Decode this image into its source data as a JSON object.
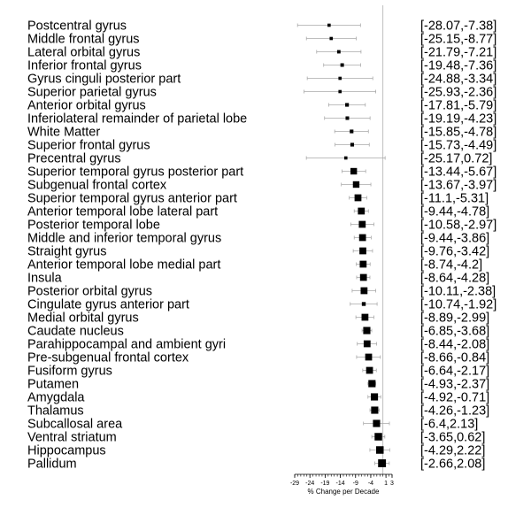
{
  "chart_data": {
    "type": "forest",
    "xlabel": "% Change per Decade",
    "xlim": [
      -29,
      3
    ],
    "x_ticks": [
      -29,
      -24,
      -19,
      -14,
      -9,
      -4,
      1,
      3
    ],
    "reference_line": 0,
    "rows": [
      {
        "label": "Postcentral gyrus",
        "estimate": -17.7,
        "lower": -28.07,
        "upper": -7.38,
        "ci_text": "[-28.07,-7.38]",
        "weight": 0.15
      },
      {
        "label": "Middle frontal gyrus",
        "estimate": -17.0,
        "lower": -25.15,
        "upper": -8.77,
        "ci_text": "[-25.15,-8.77]",
        "weight": 0.15
      },
      {
        "label": "Lateral orbital gyrus",
        "estimate": -14.5,
        "lower": -21.79,
        "upper": -7.21,
        "ci_text": "[-21.79,-7.21]",
        "weight": 0.18
      },
      {
        "label": "Inferior frontal gyrus",
        "estimate": -13.4,
        "lower": -19.48,
        "upper": -7.36,
        "ci_text": "[-19.48,-7.36]",
        "weight": 0.2
      },
      {
        "label": "Gyrus cinguli posterior part",
        "estimate": -14.1,
        "lower": -24.88,
        "upper": -3.34,
        "ci_text": "[-24.88,-3.34]",
        "weight": 0.15
      },
      {
        "label": "Superior parietal gyrus",
        "estimate": -14.1,
        "lower": -25.93,
        "upper": -2.36,
        "ci_text": "[-25.93,-2.36]",
        "weight": 0.15
      },
      {
        "label": "Anterior orbital gyrus",
        "estimate": -11.8,
        "lower": -17.81,
        "upper": -5.79,
        "ci_text": "[-17.81,-5.79]",
        "weight": 0.22
      },
      {
        "label": "Inferiolateral remainder of parietal lobe",
        "estimate": -11.7,
        "lower": -19.19,
        "upper": -4.23,
        "ci_text": "[-19.19,-4.23]",
        "weight": 0.2
      },
      {
        "label": "White Matter",
        "estimate": -10.3,
        "lower": -15.85,
        "upper": -4.78,
        "ci_text": "[-15.85,-4.78]",
        "weight": 0.22
      },
      {
        "label": "Superior frontal gyrus",
        "estimate": -10.1,
        "lower": -15.73,
        "upper": -4.49,
        "ci_text": "[-15.73,-4.49]",
        "weight": 0.22
      },
      {
        "label": "Precentral gyrus",
        "estimate": -12.2,
        "lower": -25.17,
        "upper": 0.72,
        "ci_text": "[-25.17,0.72]",
        "weight": 0.15
      },
      {
        "label": "Superior temporal gyrus posterior part",
        "estimate": -9.6,
        "lower": -13.44,
        "upper": -5.67,
        "ci_text": "[-13.44,-5.67]",
        "weight": 0.65
      },
      {
        "label": "Subgenual frontal cortex",
        "estimate": -8.8,
        "lower": -13.67,
        "upper": -3.97,
        "ci_text": "[-13.67,-3.97]",
        "weight": 0.65
      },
      {
        "label": " Superior temporal gyrus anterior part",
        "estimate": -8.2,
        "lower": -11.1,
        "upper": -5.31,
        "ci_text": "[-11.1,-5.31]",
        "weight": 0.7
      },
      {
        "label": "Anterior temporal lobe lateral part",
        "estimate": -7.1,
        "lower": -9.44,
        "upper": -4.78,
        "ci_text": "[-9.44,-4.78]",
        "weight": 0.7
      },
      {
        "label": "Posterior temporal lobe",
        "estimate": -6.8,
        "lower": -10.58,
        "upper": -2.97,
        "ci_text": "[-10.58,-2.97]",
        "weight": 0.7
      },
      {
        "label": "Middle and inferior temporal gyrus",
        "estimate": -6.7,
        "lower": -9.44,
        "upper": -3.86,
        "ci_text": "[-9.44,-3.86]",
        "weight": 0.7
      },
      {
        "label": "Straight gyrus",
        "estimate": -6.6,
        "lower": -9.76,
        "upper": -3.42,
        "ci_text": "[-9.76,-3.42]",
        "weight": 0.7
      },
      {
        "label": "Anterior temporal lobe medial part",
        "estimate": -6.5,
        "lower": -8.74,
        "upper": -4.2,
        "ci_text": "[-8.74,-4.2]",
        "weight": 0.7
      },
      {
        "label": "Insula",
        "estimate": -6.4,
        "lower": -8.64,
        "upper": -4.28,
        "ci_text": "[-8.64,-4.28]",
        "weight": 0.7
      },
      {
        "label": "Posterior orbital gyrus",
        "estimate": -6.2,
        "lower": -10.11,
        "upper": -2.38,
        "ci_text": "[-10.11,-2.38]",
        "weight": 0.7
      },
      {
        "label": "Cingulate gyrus anterior part",
        "estimate": -6.3,
        "lower": -10.74,
        "upper": -1.92,
        "ci_text": "[-10.74,-1.92]",
        "weight": 0.25
      },
      {
        "label": "Medial orbital gyrus",
        "estimate": -5.9,
        "lower": -8.89,
        "upper": -2.99,
        "ci_text": "[-8.89,-2.99]",
        "weight": 0.7
      },
      {
        "label": "Caudate nucleus",
        "estimate": -5.3,
        "lower": -6.85,
        "upper": -3.68,
        "ci_text": "[-6.85,-3.68]",
        "weight": 0.75
      },
      {
        "label": "Parahippocampal and ambient gyri",
        "estimate": -5.2,
        "lower": -8.44,
        "upper": -2.08,
        "ci_text": "[-8.44,-2.08]",
        "weight": 0.7
      },
      {
        "label": "Pre-subgenual frontal cortex",
        "estimate": -4.7,
        "lower": -8.66,
        "upper": -0.84,
        "ci_text": "[-8.66,-0.84]",
        "weight": 0.7
      },
      {
        "label": "Fusiform gyrus",
        "estimate": -4.4,
        "lower": -6.64,
        "upper": -2.17,
        "ci_text": "[-6.64,-2.17]",
        "weight": 0.7
      },
      {
        "label": "Putamen",
        "estimate": -3.6,
        "lower": -4.93,
        "upper": -2.37,
        "ci_text": "[-4.93,-2.37]",
        "weight": 0.75
      },
      {
        "label": "Amygdala",
        "estimate": -2.8,
        "lower": -4.92,
        "upper": -0.71,
        "ci_text": "[-4.92,-0.71]",
        "weight": 0.75
      },
      {
        "label": "Thalamus",
        "estimate": -2.7,
        "lower": -4.26,
        "upper": -1.23,
        "ci_text": "[-4.26,-1.23]",
        "weight": 0.75
      },
      {
        "label": "Subcallosal area",
        "estimate": -2.1,
        "lower": -6.4,
        "upper": 2.13,
        "ci_text": "[-6.4,2.13]",
        "weight": 0.75
      },
      {
        "label": "Ventral striatum",
        "estimate": -1.5,
        "lower": -3.65,
        "upper": 0.62,
        "ci_text": "[-3.65,0.62]",
        "weight": 0.8
      },
      {
        "label": "Hippocampus",
        "estimate": -1.0,
        "lower": -4.29,
        "upper": 2.22,
        "ci_text": "[-4.29,2.22]",
        "weight": 0.8
      },
      {
        "label": "Pallidum",
        "estimate": -0.3,
        "lower": -2.66,
        "upper": 2.08,
        "ci_text": "[-2.66,2.08]",
        "weight": 0.85
      }
    ]
  }
}
